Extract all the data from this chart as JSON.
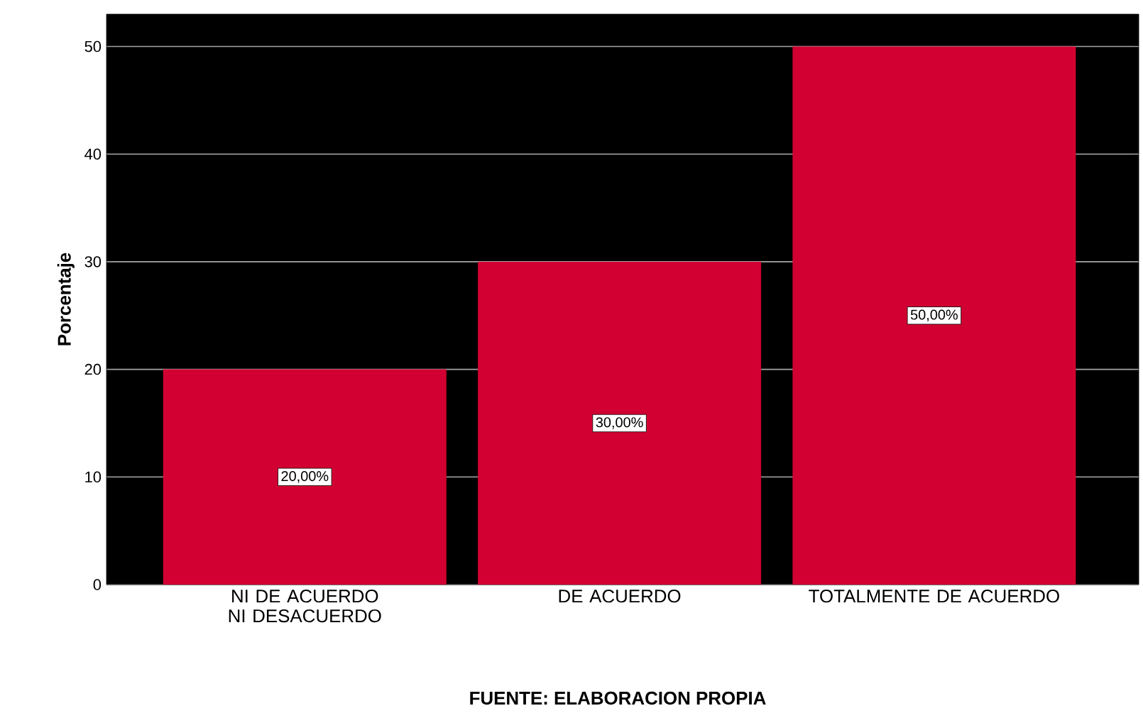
{
  "chart_data": {
    "type": "bar",
    "ylabel": "Porcentaje",
    "categories": [
      "NI DE ACUERDO NI DESACUERDO",
      "DE ACUERDO",
      "TOTALMENTE DE ACUERDO"
    ],
    "values": [
      20,
      30,
      50
    ],
    "value_labels": [
      "20,00%",
      "30,00%",
      "50,00%"
    ],
    "color": "#d20032",
    "ylim": [
      0,
      53
    ],
    "yticks": [
      0,
      10,
      20,
      30,
      40,
      50
    ],
    "grid": "y",
    "annotations": [
      "FUENTE: ELABORACION PROPIA"
    ]
  }
}
